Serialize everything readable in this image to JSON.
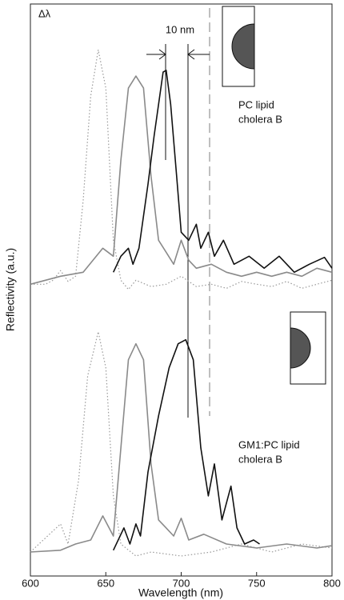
{
  "chart_data": {
    "type": "line",
    "x_label": "Wavelength (nm)",
    "y_label": "Reflectivity (a.u.)",
    "xlim": [
      600,
      800
    ],
    "xticks": [
      600,
      650,
      700,
      750,
      800
    ],
    "ylim": [
      0,
      100
    ],
    "annotations": [
      "Δλ",
      "10 nm",
      "PC lipid",
      "cholera B",
      "GM1:PC lipid",
      "cholera B"
    ],
    "series": [
      {
        "color": "#999999",
        "style": "dotted",
        "x": [
          600,
          610,
          615,
          620,
          625,
          630,
          635,
          640,
          645,
          650,
          655,
          660,
          665,
          670,
          680,
          690,
          700,
          710,
          720,
          730,
          740,
          750,
          760,
          770,
          780,
          790,
          800
        ],
        "values": [
          51.0,
          51.0,
          51.7,
          53.4,
          51.5,
          52.4,
          65.7,
          83.9,
          92.0,
          85.3,
          58.7,
          51.7,
          50.1,
          51.7,
          50.6,
          51.0,
          52.4,
          50.6,
          51.0,
          50.3,
          51.5,
          51.0,
          50.6,
          51.5,
          50.3,
          51.0,
          51.7
        ]
      },
      {
        "color": "#8a8a8a",
        "style": "solid",
        "x": [
          600,
          620,
          635,
          648,
          655,
          660,
          665,
          670,
          675,
          680,
          685,
          690,
          695,
          700,
          705,
          710,
          720,
          730,
          740,
          750,
          760,
          770,
          780,
          790,
          800
        ],
        "values": [
          51.0,
          52.4,
          53.1,
          57.3,
          55.9,
          72.7,
          85.3,
          87.4,
          85.3,
          69.9,
          58.7,
          56.6,
          54.5,
          58.7,
          55.2,
          53.8,
          54.5,
          53.1,
          52.4,
          53.1,
          52.4,
          53.1,
          52.4,
          53.8,
          53.1
        ]
      },
      {
        "color": "#111111",
        "style": "solid",
        "x": [
          655,
          660,
          665,
          668,
          672,
          678,
          682,
          688,
          690,
          693,
          697,
          700,
          705,
          710,
          713,
          718,
          722,
          728,
          735,
          745,
          755,
          765,
          775,
          785,
          795,
          800
        ],
        "values": [
          53.1,
          55.9,
          57.3,
          54.5,
          57.3,
          68.5,
          76.9,
          88.1,
          88.4,
          82.5,
          69.9,
          60.1,
          58.7,
          61.5,
          57.3,
          60.1,
          55.9,
          58.7,
          54.5,
          55.9,
          53.8,
          55.9,
          53.1,
          54.5,
          55.7,
          53.8
        ]
      },
      {
        "color": "#999999",
        "style": "dotted",
        "x": [
          600,
          620,
          625,
          632,
          638,
          645,
          650,
          655,
          660,
          670,
          680,
          700,
          720,
          740,
          760,
          780,
          800
        ],
        "values": [
          4.2,
          9.1,
          5.6,
          16.8,
          35.0,
          42.7,
          36.4,
          14.0,
          5.6,
          3.5,
          4.2,
          3.5,
          4.2,
          5.6,
          4.2,
          5.6,
          4.9
        ]
      },
      {
        "color": "#8a8a8a",
        "style": "solid",
        "x": [
          600,
          620,
          630,
          640,
          648,
          655,
          660,
          665,
          670,
          675,
          680,
          685,
          690,
          695,
          700,
          705,
          715,
          730,
          750,
          770,
          790,
          800
        ],
        "values": [
          4.2,
          4.5,
          5.6,
          6.3,
          10.5,
          7.0,
          22.4,
          37.8,
          40.6,
          37.8,
          19.6,
          9.8,
          8.4,
          7.0,
          10.1,
          6.3,
          7.3,
          5.6,
          4.9,
          5.6,
          4.9,
          5.3
        ]
      },
      {
        "color": "#111111",
        "style": "solid",
        "x": [
          655,
          662,
          666,
          670,
          673,
          678,
          685,
          692,
          698,
          703,
          708,
          713,
          718,
          722,
          727,
          733,
          737,
          742,
          748,
          752
        ],
        "values": [
          4.5,
          8.4,
          5.6,
          9.1,
          7.0,
          18.2,
          28.0,
          36.4,
          40.6,
          41.3,
          37.8,
          22.4,
          14.0,
          19.6,
          9.8,
          15.7,
          8.4,
          5.6,
          6.3,
          5.6
        ]
      }
    ]
  }
}
